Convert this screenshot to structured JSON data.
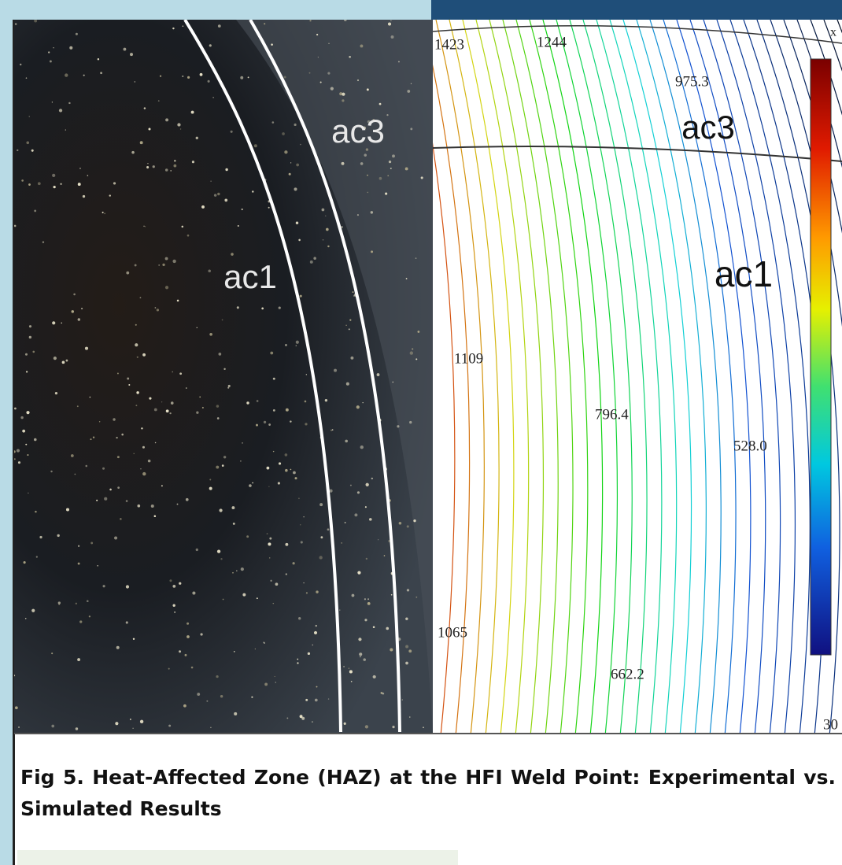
{
  "photo": {
    "labels": [
      "ac3",
      "ac1"
    ]
  },
  "simulation": {
    "contour_labels": [
      "1423",
      "1244",
      "975.3",
      "1109",
      "796.4",
      "528.0",
      "1065",
      "662.2"
    ],
    "zone_labels": [
      "ac3",
      "ac1"
    ],
    "axis_label": "x",
    "corner_label": "30"
  },
  "caption": "Fig 5. Heat-Affected Zone (HAZ) at the HFI Weld Point: Experimental vs. Simulated Results"
}
